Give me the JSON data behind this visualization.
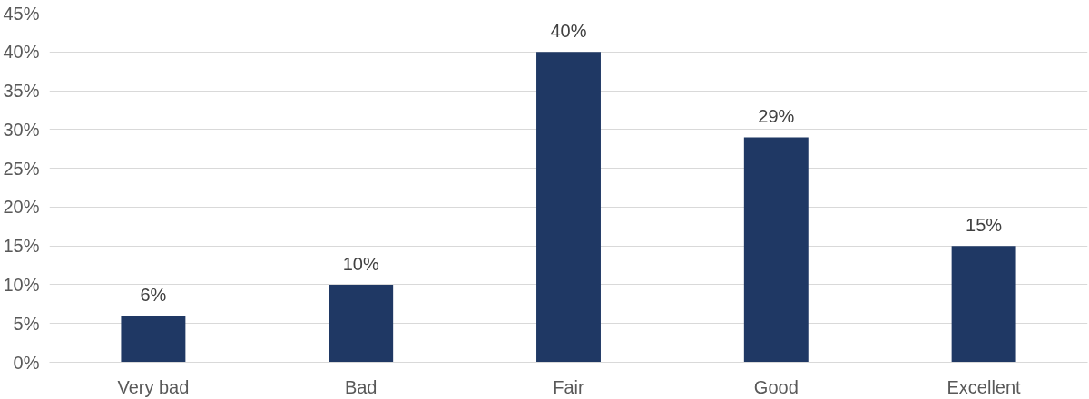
{
  "chart_data": {
    "type": "bar",
    "categories": [
      "Very bad",
      "Bad",
      "Fair",
      "Good",
      "Excellent"
    ],
    "values": [
      6,
      10,
      40,
      29,
      15
    ],
    "value_labels": [
      "6%",
      "10%",
      "40%",
      "29%",
      "15%"
    ],
    "color": "#1f3864",
    "ylim": [
      0,
      45
    ],
    "yticks": [
      {
        "value": 0,
        "label": "0%"
      },
      {
        "value": 5,
        "label": "5%"
      },
      {
        "value": 10,
        "label": "10%"
      },
      {
        "value": 15,
        "label": "15%"
      },
      {
        "value": 20,
        "label": "20%"
      },
      {
        "value": 25,
        "label": "25%"
      },
      {
        "value": 30,
        "label": "30%"
      },
      {
        "value": 35,
        "label": "35%"
      },
      {
        "value": 40,
        "label": "40%"
      },
      {
        "value": 45,
        "label": "45%"
      }
    ],
    "grid": "y"
  }
}
